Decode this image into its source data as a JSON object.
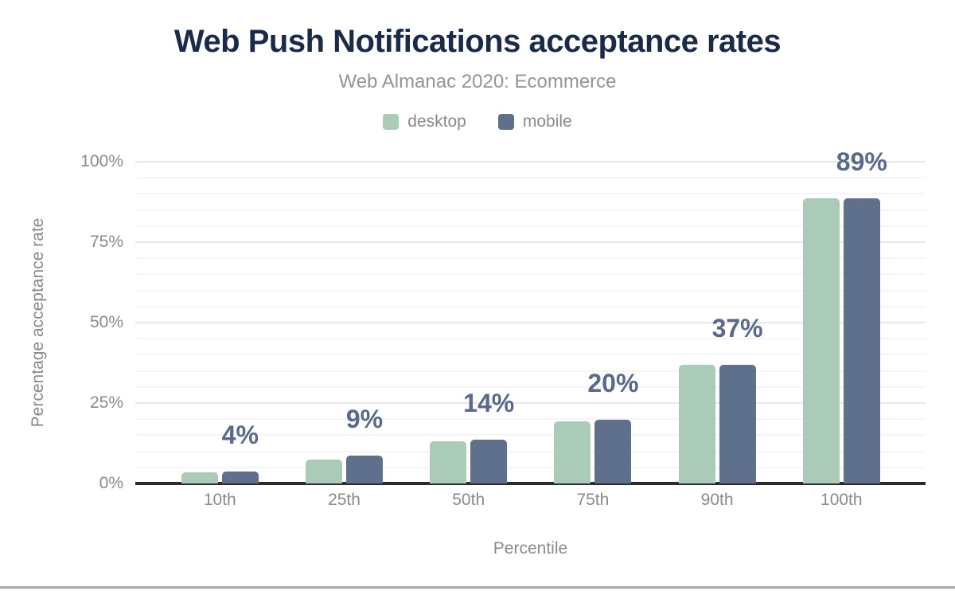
{
  "chart_data": {
    "type": "bar",
    "title": "Web Push Notifications acceptance rates",
    "subtitle": "Web Almanac 2020: Ecommerce",
    "xlabel": "Percentile",
    "ylabel": "Percentage acceptance rate",
    "categories": [
      "10th",
      "25th",
      "50th",
      "75th",
      "90th",
      "100th"
    ],
    "series": [
      {
        "name": "desktop",
        "color": "#a9cbb7",
        "values": [
          3.4,
          7.5,
          13.1,
          19.4,
          37.0,
          88.5
        ]
      },
      {
        "name": "mobile",
        "color": "#5f708c",
        "values": [
          3.7,
          8.7,
          13.7,
          19.9,
          36.9,
          88.7
        ]
      }
    ],
    "bar_labels": [
      "4%",
      "9%",
      "14%",
      "20%",
      "37%",
      "89%"
    ],
    "ylim": [
      0,
      100
    ],
    "yticks": [
      {
        "pct": 0,
        "label": "0%"
      },
      {
        "pct": 25,
        "label": "25%"
      },
      {
        "pct": 50,
        "label": "50%"
      },
      {
        "pct": 75,
        "label": "75%"
      },
      {
        "pct": 100,
        "label": "100%"
      }
    ],
    "minor_grid_step": 5,
    "major_grid_step": 25,
    "grid": true,
    "legend_position": "top",
    "colors": {
      "title": "#1a2b49",
      "subtitle": "#949494",
      "axis_text": "#8a8a8a",
      "value_label": "#58698c",
      "axis_line": "#2b2b2b",
      "grid_major": "#e7e7e7",
      "grid_minor": "#f5f5f5",
      "background": "#ffffff",
      "bottom_rule": "#a9a9a9"
    }
  }
}
